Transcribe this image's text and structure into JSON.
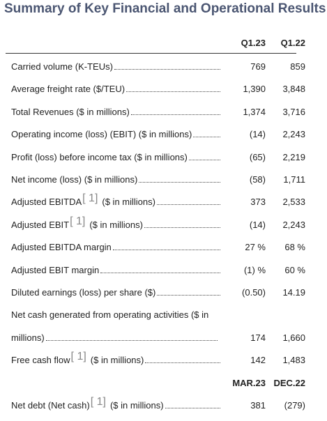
{
  "title": "Summary of Key Financial and Operational Results",
  "table": {
    "rows": [
      {
        "heading": [
          "Q1.23",
          "Q1.22"
        ]
      },
      {
        "label": "Carried volume (K-TEUs)",
        "values": [
          "769",
          "859"
        ]
      },
      {
        "label": "Average freight rate ($/TEU)",
        "values": [
          "1,390",
          "3,848"
        ]
      },
      {
        "label": "Total Revenues ($ in millions)",
        "values": [
          "1,374",
          "3,716"
        ]
      },
      {
        "label": "Operating income (loss) (EBIT) ($ in millions)",
        "values": [
          "(14)",
          "2,243"
        ]
      },
      {
        "label": "Profit (loss) before income tax ($ in millions)",
        "values": [
          "(65)",
          "2,219"
        ]
      },
      {
        "label": "Net income (loss) ($ in millions)",
        "values": [
          "(58)",
          "1,711"
        ]
      },
      {
        "label": "Adjusted EBITDA",
        "note": "[ 1]",
        "label_after": "($ in millions)",
        "values": [
          "373",
          "2,533"
        ]
      },
      {
        "label": "Adjusted EBIT",
        "note": "[ 1]",
        "label_after": "($ in millions)",
        "values": [
          "(14)",
          "2,243"
        ]
      },
      {
        "label": "Adjusted EBITDA margin",
        "values": [
          "27 %",
          "68 %"
        ]
      },
      {
        "label": "Adjusted EBIT margin",
        "values": [
          "(1) %",
          "60 %"
        ]
      },
      {
        "label": "Diluted earnings (loss) per share ($)",
        "values": [
          "(0.50)",
          "14.19"
        ]
      },
      {
        "label": "Net cash generated from operating activities ($ in"
      },
      {
        "label": "millions)",
        "values": [
          "174",
          "1,660"
        ]
      },
      {
        "label": "Free cash flow",
        "note": "[ 1]",
        "label_after": "($ in millions)",
        "values": [
          "142",
          "1,483"
        ]
      },
      {
        "heading": [
          "MAR.23",
          "DEC.22"
        ]
      },
      {
        "label": "Net debt (Net cash)",
        "note": "[ 1]",
        "label_after": "($ in millions)",
        "values": [
          "381",
          "(279)"
        ]
      }
    ]
  }
}
